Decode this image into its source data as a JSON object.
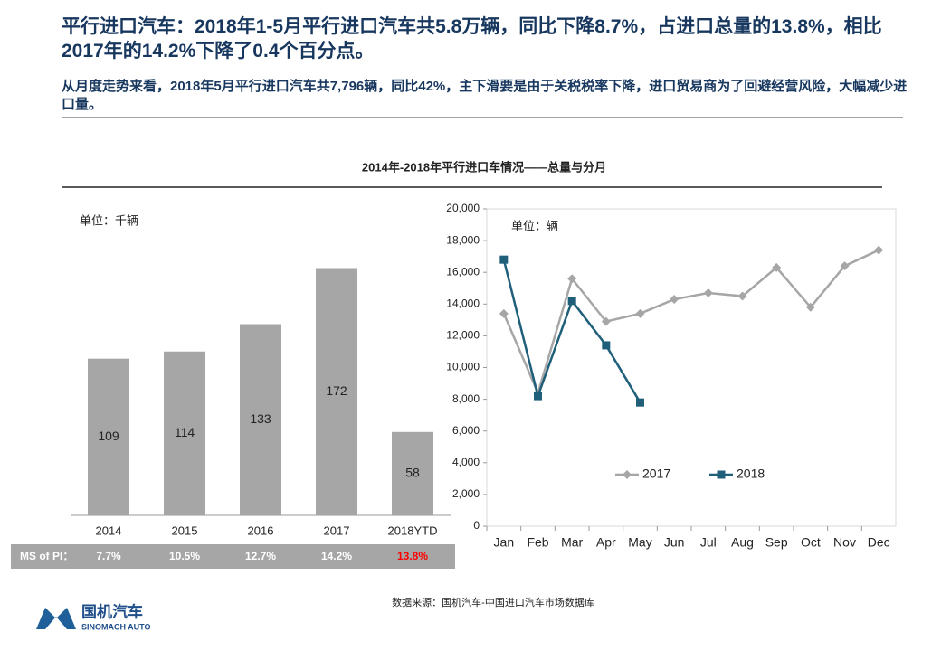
{
  "header": {
    "title": "平行进口汽车：2018年1-5月平行进口汽车共5.8万辆，同比下降8.7%，占进口总量的13.8%，相比2017年的14.2%下降了0.4个百分点。",
    "subtitle": "从月度走势来看，2018年5月平行进口汽车共7,796辆，同比42%，主下滑要是由于关税税率下降，进口贸易商为了回避经营风险，大幅减少进口量。"
  },
  "chart_title": "2014年-2018年平行进口车情况——总量与分月",
  "ms_row": {
    "label": "MS of PI：",
    "values": [
      "7.7%",
      "10.5%",
      "12.7%",
      "14.2%",
      "13.8%"
    ],
    "colors": [
      "#ffffff",
      "#ffffff",
      "#ffffff",
      "#ffffff",
      "#ff0000"
    ]
  },
  "source": "数据来源：国机汽车-中国进口汽车市场数据库",
  "logo": {
    "name": "国机汽车",
    "sub": "SINOMACH AUTO"
  },
  "chart_data": [
    {
      "type": "bar",
      "unit": "单位：千辆",
      "categories": [
        "2014",
        "2015",
        "2016",
        "2017",
        "2018YTD"
      ],
      "values": [
        109,
        114,
        133,
        172,
        58
      ],
      "color": "#a6a6a6"
    },
    {
      "type": "line",
      "unit": "单位：辆",
      "categories": [
        "Jan",
        "Feb",
        "Mar",
        "Apr",
        "May",
        "Jun",
        "Jul",
        "Aug",
        "Sep",
        "Oct",
        "Nov",
        "Dec"
      ],
      "ylim": [
        0,
        20000
      ],
      "yticks": [
        0,
        {
          "value": 2000,
          "label": "2,000"
        },
        {
          "value": 4000,
          "label": "4,000"
        },
        {
          "value": 6000,
          "label": "6,000"
        },
        {
          "value": 8000,
          "label": "8,000"
        },
        {
          "value": 10000,
          "label": "10,000"
        },
        {
          "value": 12000,
          "label": "12,000"
        },
        {
          "value": 14000,
          "label": "14,000"
        },
        {
          "value": 16000,
          "label": "16,000"
        },
        {
          "value": 18000,
          "label": "18,000"
        },
        {
          "value": 20000,
          "label": "20,000"
        }
      ],
      "series": [
        {
          "name": "2017",
          "color": "#a6a6a6",
          "marker": "diamond",
          "values": [
            13400,
            8400,
            15600,
            12900,
            13400,
            14300,
            14700,
            14500,
            16300,
            13800,
            16400,
            17400
          ]
        },
        {
          "name": "2018",
          "color": "#1f5f7a",
          "marker": "square",
          "values": [
            16800,
            8200,
            14200,
            11400,
            7796,
            null,
            null,
            null,
            null,
            null,
            null,
            null
          ]
        }
      ]
    }
  ]
}
